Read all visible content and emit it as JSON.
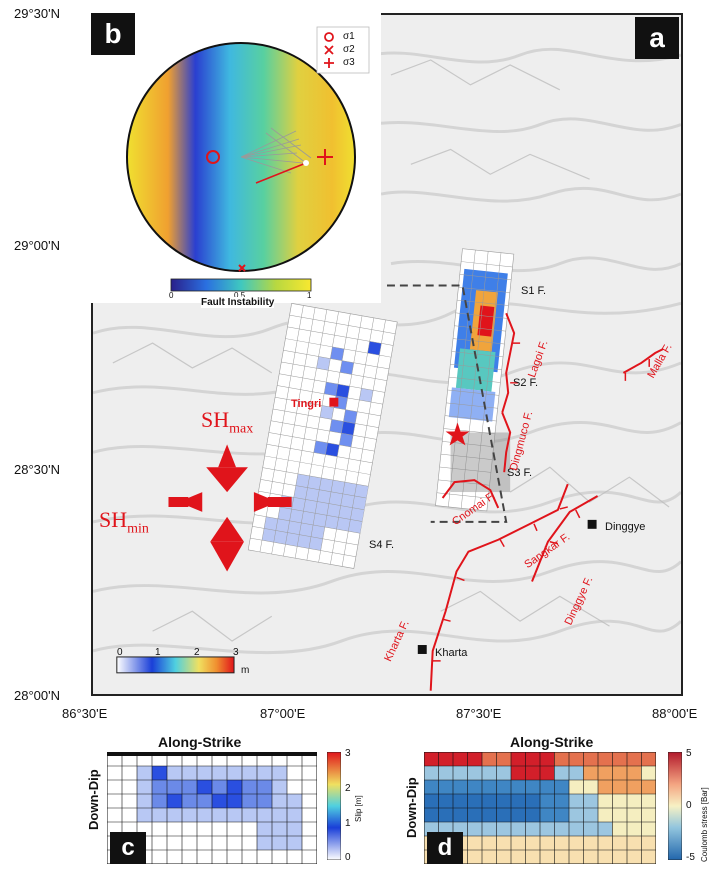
{
  "panels": {
    "a": "a",
    "b": "b",
    "c": "c",
    "d": "d"
  },
  "axes": {
    "lat_ticks": [
      "29°30'N",
      "29°00'N",
      "28°30'N",
      "28°00'N"
    ],
    "lon_ticks": [
      "86°30'E",
      "87°00'E",
      "87°30'E",
      "88°00'E"
    ]
  },
  "map": {
    "places": {
      "tingri": "Tingri",
      "kharta": "Kharta",
      "dinggye": "Dinggye"
    },
    "faults": {
      "s1": "S1 F.",
      "s2": "S2 F.",
      "s3": "S3 F.",
      "s4": "S4 F.",
      "lagoi": "Lagoi F.",
      "dinggmuco": "Dingmuco F.",
      "cnomai": "Cnomai F.",
      "sangkar": "Sangkar F.",
      "dinggye": "Dinggye F.",
      "kharta": "Kharta F.",
      "malla": "Malla F."
    },
    "stress": {
      "shmax_main": "SH",
      "shmax_sub": "max",
      "shmin_main": "SH",
      "shmin_sub": "min"
    },
    "slip_colorbar": {
      "ticks": [
        "0",
        "1",
        "2",
        "3"
      ],
      "unit": "m"
    },
    "colors": {
      "fault": "#e0141b",
      "marker": "#e0141b",
      "slip_blue": "#1a3fd8"
    }
  },
  "stereonet": {
    "legend": [
      "σ1",
      "σ2",
      "σ3"
    ],
    "colorbar_ticks": [
      "0",
      "0.5",
      "1"
    ],
    "colorbar_label": "Fault Instability"
  },
  "panel_c": {
    "title": "Along-Strike",
    "ylabel": "Down-Dip",
    "cbar_ticks": [
      "3",
      "2",
      "1",
      "0"
    ],
    "cbar_label": "Slip [m]"
  },
  "panel_d": {
    "title": "Along-Strike",
    "ylabel": "Down-Dip",
    "cbar_ticks": [
      "5",
      "0",
      "-5"
    ],
    "cbar_label": "Coulomb stress [Bar]"
  }
}
